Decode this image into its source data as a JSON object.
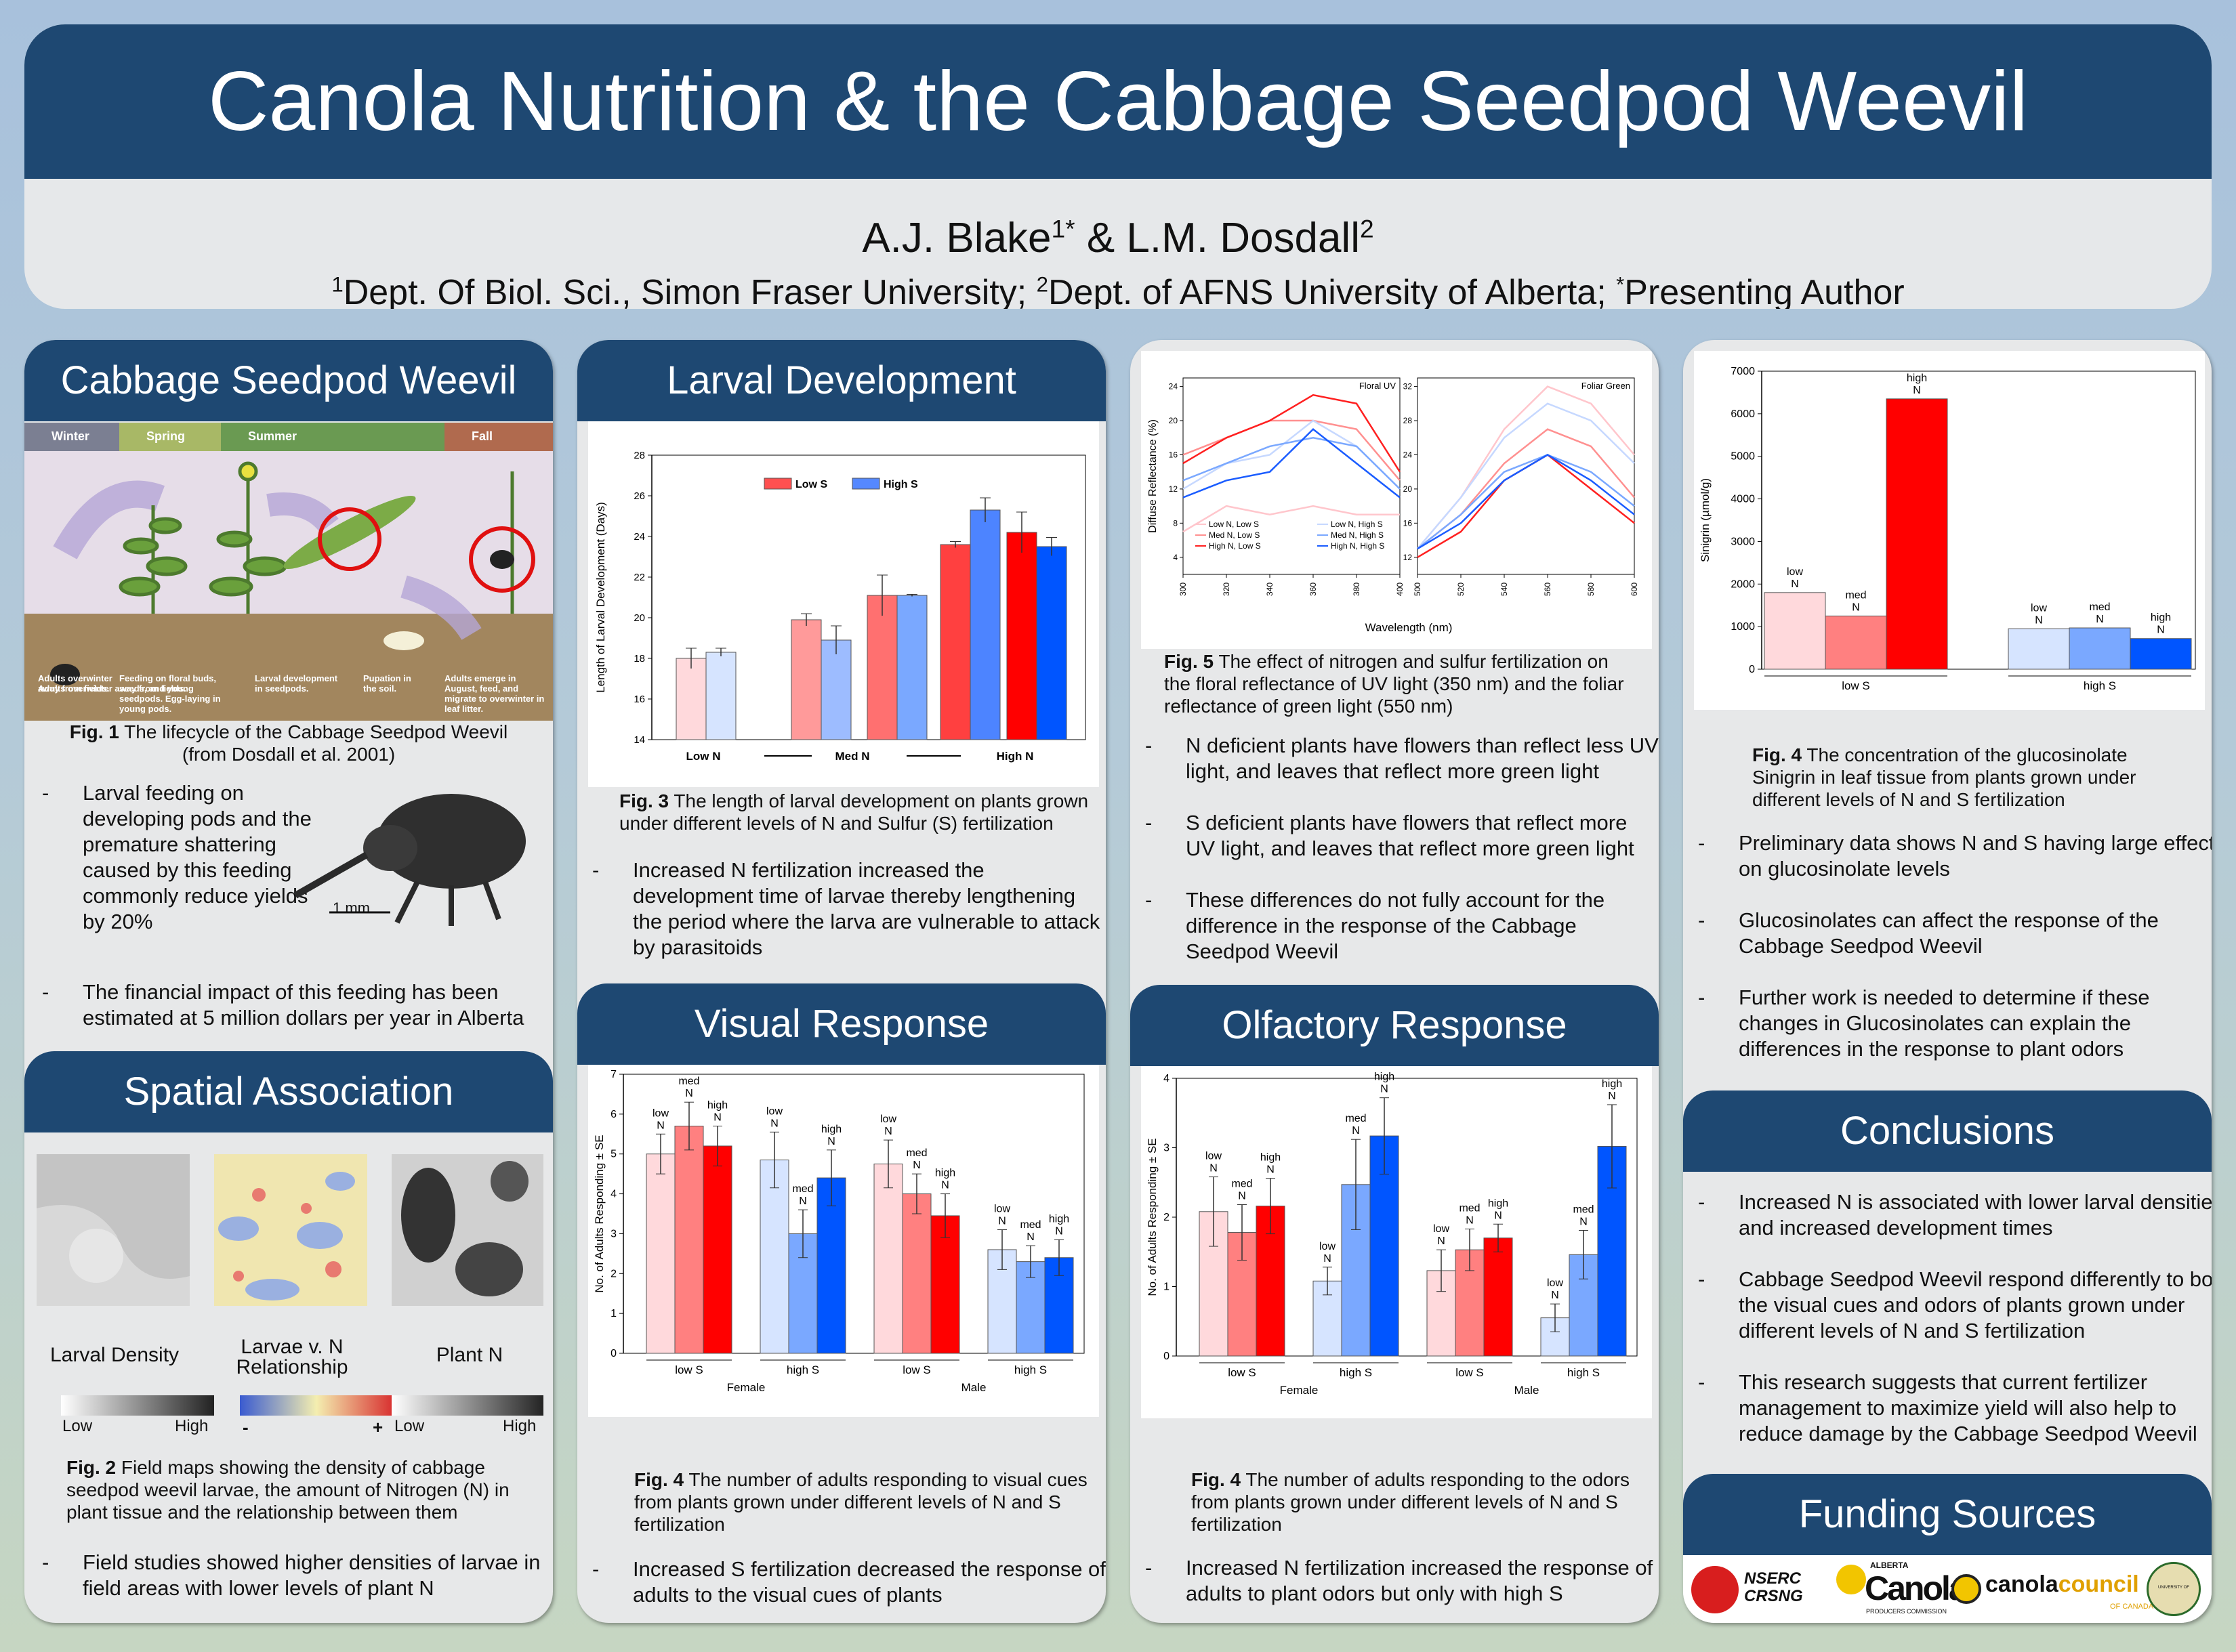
{
  "header": {
    "title": "Canola Nutrition & the Cabbage Seedpod Weevil",
    "author1": "A.J. Blake",
    "author1_sup": "1*",
    "author_sep": " & ",
    "author2": "L.M. Dosdall",
    "author2_sup": "2",
    "affil_1_sup": "1",
    "affil_1": "Dept. Of Biol. Sci., Simon Fraser University; ",
    "affil_2_sup": "2",
    "affil_2": "Dept. of AFNS University of Alberta; ",
    "affil_3_sup": "*",
    "affil_3": "Presenting Author"
  },
  "weevil": {
    "heading": "Cabbage Seedpod Weevil",
    "seasons": [
      "Winter",
      "Spring",
      "Summer",
      "Fall"
    ],
    "stages": [
      "Adults overwinter away from fields.",
      "Feeding on floral buds, seeds, and young seedpods. Egg-laying in young pods.",
      "Larval development in seedpods.",
      "Pupation in the soil.",
      "Adults emerge in August, feed, and migrate to overwinter in leaf litter."
    ],
    "fig_label": "Fig. 1",
    "fig_caption": " The lifecycle of the Cabbage Seedpod Weevil (from Dosdall et al. 2001)",
    "scale_label": "1 mm",
    "bullets": [
      "Larval feeding on developing pods and the premature shattering caused by this feeding commonly reduce yields by 20%",
      "The financial impact of this feeding has been estimated at 5 million dollars per year in Alberta"
    ]
  },
  "spatial": {
    "heading": "Spatial Association",
    "map_labels": [
      "Larval Density",
      "Larvae v. N Relationship",
      "Plant N"
    ],
    "legend1": [
      "Low",
      "High"
    ],
    "legend2": [
      "-",
      "+"
    ],
    "legend3": [
      "Low",
      "High"
    ],
    "fig_label": "Fig. 2",
    "fig_caption": "  Field maps showing the density of cabbage seedpod weevil larvae, the amount of Nitrogen (N) in plant tissue and the relationship between them",
    "bullets": [
      "Field studies showed higher densities of larvae in field areas with lower levels of plant N"
    ]
  },
  "larval": {
    "heading": "Larval Development",
    "fig_label": "Fig. 3",
    "fig_caption": "  The length of larval development on plants grown under different levels of N and Sulfur (S) fertilization",
    "bullets": [
      "Increased N fertilization increased the development time of larvae thereby lengthening the period where the larva are vulnerable to attack by parasitoids"
    ]
  },
  "visual": {
    "heading": "Visual Response",
    "fig_label": "Fig. 4",
    "fig_caption": "  The number of adults responding to visual cues from plants grown under different levels of N and S fertilization",
    "bullets": [
      "Increased S fertilization decreased the response of adults to the visual cues of plants"
    ]
  },
  "reflect": {
    "fig_label": "Fig. 5",
    "fig_caption": " The effect of nitrogen and sulfur fertilization on the floral reflectance of UV light (350 nm) and the foliar reflectance of green light (550 nm)",
    "bullets": [
      "N deficient plants have flowers than reflect less UV light, and leaves that reflect more green light",
      "S deficient plants have flowers that reflect more UV light, and leaves that reflect more green light",
      "These differences do not fully account for the difference in the response of the Cabbage Seedpod Weevil"
    ]
  },
  "olfactory": {
    "heading": "Olfactory Response",
    "fig_label": "Fig. 4",
    "fig_caption": "  The number of adults responding to the odors from plants grown under different levels of N and S fertilization",
    "bullets": [
      "Increased N fertilization increased the response of adults to plant odors but only with high S"
    ]
  },
  "sinigrin": {
    "fig_label": "Fig. 4",
    "fig_caption": "  The concentration of the glucosinolate Sinigrin in leaf tissue from plants grown under different levels of N and S fertilization",
    "bullets": [
      "Preliminary data shows N and S having large effects on glucosinolate levels",
      "Glucosinolates can affect the response of the Cabbage Seedpod Weevil",
      "Further work is needed to determine if these changes in Glucosinolates can explain the differences in the response to plant odors"
    ]
  },
  "conclusions": {
    "heading": "Conclusions",
    "bullets": [
      "Increased N is associated with lower larval densities and increased development times",
      "Cabbage Seedpod Weevil respond differently to both the visual cues and odors of plants grown under different levels of N and S fertilization",
      "This research suggests that current fertilizer management to maximize yield will also help to reduce damage by the Cabbage Seedpod Weevil"
    ]
  },
  "funding": {
    "heading": "Funding Sources",
    "logos": [
      "NSERC",
      "CRSNG",
      "ALBERTA",
      "Canola",
      "PRODUCERS COMMISSION",
      "canola",
      "council",
      "OF CANADA",
      "UNIVERSITY OF ALBERTA"
    ]
  },
  "colors": {
    "navy": "#1e4872",
    "red1": "#ffd9dc",
    "red2": "#ff8080",
    "red3": "#ff0000",
    "blue1": "#d6e4ff",
    "blue2": "#7aa8ff",
    "blue3": "#0055ff"
  },
  "chart_data": [
    {
      "id": "larval",
      "type": "bar",
      "title": "",
      "ylabel": "Length of Larval Development (Days)",
      "ylim": [
        14,
        28
      ],
      "yticks": [
        "14",
        "16",
        "18",
        "20",
        "22",
        "24",
        "26",
        "28"
      ],
      "legend": [
        "Low S",
        "High S"
      ],
      "categories": [
        "Low N",
        "Med N",
        "High N"
      ],
      "arrow_label": "Low N → Med N → High N",
      "bars": [
        {
          "v": 18,
          "e": 0.5,
          "c": "#ffd9dc"
        },
        {
          "v": 18.3,
          "e": 0.2,
          "c": "#d6e4ff"
        },
        {
          "v": 19.9,
          "e": 0.3,
          "c": "#ff9a9a"
        },
        {
          "v": 18.9,
          "e": 0.7,
          "c": "#9dbcff"
        },
        {
          "v": 21.1,
          "e": 1.0,
          "c": "#ff7070"
        },
        {
          "v": 21.1,
          "e": 0.05,
          "c": "#7aa8ff"
        },
        {
          "v": 23.6,
          "e": 0.15,
          "c": "#ff4040"
        },
        {
          "v": 25.3,
          "e": 0.6,
          "c": "#4d84ff"
        },
        {
          "v": 24.2,
          "e": 1.0,
          "c": "#ff0000"
        },
        {
          "v": 23.5,
          "e": 0.45,
          "c": "#0055ff"
        }
      ]
    },
    {
      "id": "visual",
      "type": "bar",
      "ylabel": "No. of Adults Responding ± SE",
      "ylim": [
        0,
        7
      ],
      "yticks": [
        "0",
        "1",
        "2",
        "3",
        "4",
        "5",
        "6",
        "7"
      ],
      "groups": [
        "low S",
        "high S",
        "low S",
        "high S"
      ],
      "sexes": [
        "Female",
        "Male"
      ],
      "n_word": "N",
      "bars": [
        {
          "v": 5,
          "e": 0.5,
          "l": "low",
          "c": "#ffd9dc"
        },
        {
          "v": 5.7,
          "e": 0.6,
          "l": "med",
          "c": "#ff8080"
        },
        {
          "v": 5.2,
          "e": 0.5,
          "l": "high",
          "c": "#ff0000"
        },
        {
          "v": 4.85,
          "e": 0.7,
          "l": "low",
          "c": "#d6e4ff"
        },
        {
          "v": 3,
          "e": 0.6,
          "l": "med",
          "c": "#7aa8ff"
        },
        {
          "v": 4.4,
          "e": 0.7,
          "l": "high",
          "c": "#0055ff"
        },
        {
          "v": 4.75,
          "e": 0.6,
          "l": "low",
          "c": "#ffd9dc"
        },
        {
          "v": 4,
          "e": 0.5,
          "l": "med",
          "c": "#ff8080"
        },
        {
          "v": 3.45,
          "e": 0.55,
          "l": "high",
          "c": "#ff0000"
        },
        {
          "v": 2.6,
          "e": 0.5,
          "l": "low",
          "c": "#d6e4ff"
        },
        {
          "v": 2.3,
          "e": 0.4,
          "l": "med",
          "c": "#7aa8ff"
        },
        {
          "v": 2.4,
          "e": 0.45,
          "l": "high",
          "c": "#0055ff"
        }
      ]
    },
    {
      "id": "olfactory",
      "type": "bar",
      "ylabel": "No. of Adults Responding ± SE",
      "ylim": [
        0,
        4
      ],
      "yticks": [
        "0",
        "1",
        "2",
        "3",
        "4"
      ],
      "groups": [
        "low S",
        "high S",
        "low S",
        "high S"
      ],
      "sexes": [
        "Female",
        "Male"
      ],
      "n_word": "N",
      "bars": [
        {
          "v": 2.08,
          "e": 0.5,
          "l": "low",
          "c": "#ffd9dc"
        },
        {
          "v": 1.78,
          "e": 0.4,
          "l": "med",
          "c": "#ff8080"
        },
        {
          "v": 2.16,
          "e": 0.4,
          "l": "high",
          "c": "#ff0000"
        },
        {
          "v": 1.08,
          "e": 0.2,
          "l": "low",
          "c": "#d6e4ff"
        },
        {
          "v": 2.47,
          "e": 0.65,
          "l": "med",
          "c": "#7aa8ff"
        },
        {
          "v": 3.17,
          "e": 0.55,
          "l": "high",
          "c": "#0055ff"
        },
        {
          "v": 1.23,
          "e": 0.3,
          "l": "low",
          "c": "#ffd9dc"
        },
        {
          "v": 1.53,
          "e": 0.3,
          "l": "med",
          "c": "#ff8080"
        },
        {
          "v": 1.7,
          "e": 0.2,
          "l": "high",
          "c": "#ff0000"
        },
        {
          "v": 0.55,
          "e": 0.2,
          "l": "low",
          "c": "#d6e4ff"
        },
        {
          "v": 1.46,
          "e": 0.35,
          "l": "med",
          "c": "#7aa8ff"
        },
        {
          "v": 3.02,
          "e": 0.6,
          "l": "high",
          "c": "#0055ff"
        }
      ]
    },
    {
      "id": "sinigrin",
      "type": "bar",
      "ylabel": "Sinigrin (µmol/g)",
      "ylim": [
        0,
        7000
      ],
      "yticks": [
        "0",
        "1000",
        "2000",
        "3000",
        "4000",
        "5000",
        "6000",
        "7000"
      ],
      "groups": [
        "low S",
        "high S"
      ],
      "n_word": "N",
      "bars": [
        {
          "v": 1800,
          "l": "low",
          "c": "#ffd9dc"
        },
        {
          "v": 1250,
          "l": "med",
          "c": "#ff8080"
        },
        {
          "v": 6350,
          "l": "high",
          "c": "#ff0000"
        },
        {
          "v": 950,
          "l": "low",
          "c": "#d6e4ff"
        },
        {
          "v": 970,
          "l": "med",
          "c": "#7aa8ff"
        },
        {
          "v": 720,
          "l": "high",
          "c": "#0055ff"
        }
      ]
    },
    {
      "id": "reflectance",
      "type": "line",
      "ylabel": "Diffuse Reflectance (%)",
      "xlabel": "Wavelength (nm)",
      "panels": [
        {
          "title": "Floral UV",
          "xlim": [
            300,
            400
          ],
          "ylim": [
            2,
            25
          ],
          "xticks": [
            "300",
            "320",
            "340",
            "360",
            "380",
            "400"
          ],
          "yticks": [
            "4",
            "8",
            "12",
            "16",
            "20",
            "24"
          ]
        },
        {
          "title": "Foliar Green",
          "xlim": [
            500,
            600
          ],
          "ylim": [
            10,
            33
          ],
          "xticks": [
            "500",
            "520",
            "540",
            "560",
            "580",
            "600"
          ],
          "yticks": [
            "12",
            "16",
            "20",
            "24",
            "28",
            "32"
          ]
        }
      ],
      "legend": [
        "Low N, Low S",
        "Med N, Low S",
        "High N, Low S",
        "Low N, High S",
        "Med N, High S",
        "High N, High S"
      ],
      "series_colors": [
        "#ffc6cc",
        "#ff9090",
        "#ff2020",
        "#c6d8ff",
        "#7aa8ff",
        "#1a5cff"
      ],
      "uv_series": [
        [
          7,
          10,
          9,
          10,
          9,
          9
        ],
        [
          16,
          18,
          20,
          20,
          19,
          13
        ],
        [
          15,
          18,
          20,
          23,
          22,
          14
        ],
        [
          12,
          15,
          16,
          20,
          17,
          12
        ],
        [
          13,
          15,
          17,
          18,
          17,
          12
        ],
        [
          11,
          13,
          14,
          19,
          15,
          11
        ]
      ],
      "green_series": [
        [
          13,
          19,
          27,
          32,
          30,
          24
        ],
        [
          13,
          17,
          23,
          27,
          25,
          19
        ],
        [
          12,
          15,
          21,
          24,
          20,
          16
        ],
        [
          13,
          19,
          26,
          30,
          28,
          23
        ],
        [
          13,
          17,
          22,
          24,
          22,
          18
        ],
        [
          13,
          16,
          21,
          24,
          21,
          17
        ]
      ]
    }
  ]
}
